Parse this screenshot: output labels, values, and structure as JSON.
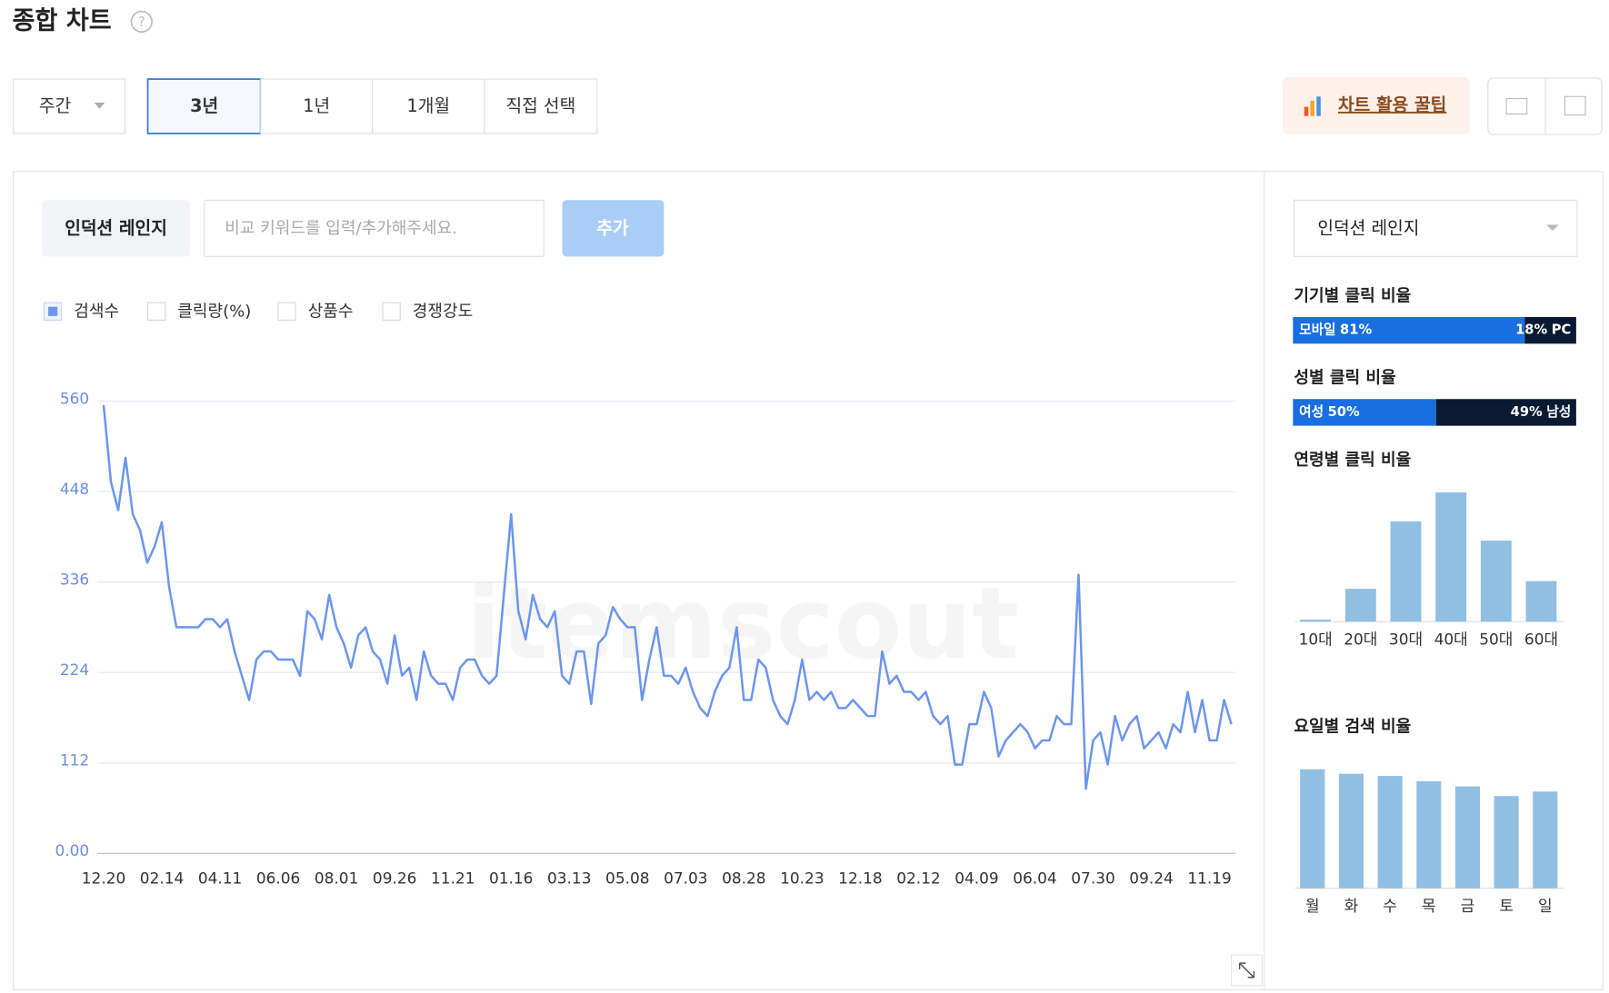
{
  "header": {
    "title": "종합 차트"
  },
  "period_select": "주간",
  "range_tabs": [
    "3년",
    "1년",
    "1개월",
    "직접 선택"
  ],
  "selected_tab": 0,
  "tip_button": "차트 활용 꿀팁",
  "keyword_chip": "인덕션 레인지",
  "keyword_input_placeholder": "비교 키워드를 입력/추가해주세요.",
  "add_button": "추가",
  "other_metrics": [
    "클릭량(%)",
    "상품수",
    "경쟁강도"
  ],
  "watermark": "itemscout",
  "side": {
    "keyword_select": "인덕션 레인지",
    "device": {
      "title": "기기별 클릭 비율",
      "names": [
        "모바일",
        "PC"
      ],
      "values": [
        81,
        18
      ],
      "value_labels": [
        "81%",
        "18%"
      ],
      "colors": [
        "#1a6fe0",
        "#0b1a33"
      ]
    },
    "gender": {
      "title": "성별 클릭 비율",
      "names": [
        "여성",
        "남성"
      ],
      "values": [
        50,
        49
      ],
      "value_labels": [
        "50%",
        "49%"
      ],
      "colors": [
        "#1a6fe0",
        "#0b1a33"
      ]
    }
  },
  "chart_data": [
    {
      "type": "line",
      "categories": [
        "12.20",
        null,
        null,
        null,
        null,
        null,
        null,
        null,
        "02.14",
        null,
        null,
        null,
        null,
        null,
        null,
        null,
        "04.11",
        null,
        null,
        null,
        null,
        null,
        null,
        null,
        "06.06",
        null,
        null,
        null,
        null,
        null,
        null,
        null,
        "08.01",
        null,
        null,
        null,
        null,
        null,
        null,
        null,
        "09.26",
        null,
        null,
        null,
        null,
        null,
        null,
        null,
        "11.21",
        null,
        null,
        null,
        null,
        null,
        null,
        null,
        "01.16",
        null,
        null,
        null,
        null,
        null,
        null,
        null,
        "03.13",
        null,
        null,
        null,
        null,
        null,
        null,
        null,
        "05.08",
        null,
        null,
        null,
        null,
        null,
        null,
        null,
        "07.03",
        null,
        null,
        null,
        null,
        null,
        null,
        null,
        "08.28",
        null,
        null,
        null,
        null,
        null,
        null,
        null,
        "10.23",
        null,
        null,
        null,
        null,
        null,
        null,
        null,
        "12.18",
        null,
        null,
        null,
        null,
        null,
        null,
        null,
        "02.12",
        null,
        null,
        null,
        null,
        null,
        null,
        null,
        "04.09",
        null,
        null,
        null,
        null,
        null,
        null,
        null,
        "06.04",
        null,
        null,
        null,
        null,
        null,
        null,
        null,
        "07.30",
        null,
        null,
        null,
        null,
        null,
        null,
        null,
        "09.24",
        null,
        null,
        null,
        null,
        null,
        null,
        null,
        "11.19",
        null,
        null,
        null
      ],
      "series": [
        {
          "name": "검색수",
          "color": "#6b95ee",
          "values": [
            555,
            460,
            425,
            490,
            420,
            400,
            360,
            380,
            410,
            330,
            280,
            280,
            280,
            280,
            290,
            290,
            280,
            290,
            250,
            220,
            190,
            240,
            250,
            250,
            240,
            240,
            240,
            220,
            300,
            290,
            265,
            320,
            280,
            260,
            230,
            270,
            280,
            250,
            240,
            210,
            270,
            220,
            230,
            190,
            250,
            220,
            210,
            210,
            190,
            230,
            240,
            240,
            220,
            210,
            220,
            320,
            420,
            300,
            265,
            320,
            290,
            280,
            300,
            220,
            210,
            250,
            250,
            185,
            260,
            270,
            305,
            290,
            280,
            280,
            190,
            240,
            280,
            220,
            220,
            210,
            230,
            200,
            180,
            170,
            200,
            220,
            230,
            280,
            190,
            190,
            240,
            230,
            190,
            170,
            160,
            190,
            240,
            190,
            200,
            190,
            200,
            180,
            180,
            190,
            180,
            170,
            170,
            250,
            210,
            220,
            200,
            200,
            190,
            200,
            170,
            160,
            170,
            110,
            110,
            160,
            160,
            200,
            180,
            120,
            140,
            150,
            160,
            150,
            130,
            140,
            140,
            170,
            160,
            160,
            345,
            80,
            140,
            150,
            110,
            170,
            140,
            160,
            170,
            130,
            140,
            150,
            130,
            160,
            150,
            200,
            150,
            190,
            140,
            140,
            190,
            160
          ]
        }
      ],
      "ylim": [
        0,
        560
      ],
      "yticks": [
        {
          "value": 0,
          "label": "0.00"
        },
        112,
        224,
        336,
        448,
        560
      ],
      "grid": true
    },
    {
      "type": "bar",
      "title": "연령별 클릭 비율",
      "categories": [
        "10대",
        "20대",
        "30대",
        "40대",
        "50대",
        "60대"
      ],
      "values": [
        0.5,
        8.5,
        26,
        33.5,
        21,
        10.5
      ],
      "color": "#90bfe3"
    },
    {
      "type": "bar",
      "title": "요일별 검색 비율",
      "categories": [
        "월",
        "화",
        "수",
        "목",
        "금",
        "토",
        "일"
      ],
      "values": [
        16,
        15.4,
        15.1,
        14.4,
        13.7,
        12.4,
        13
      ],
      "color": "#90bfe3"
    }
  ]
}
